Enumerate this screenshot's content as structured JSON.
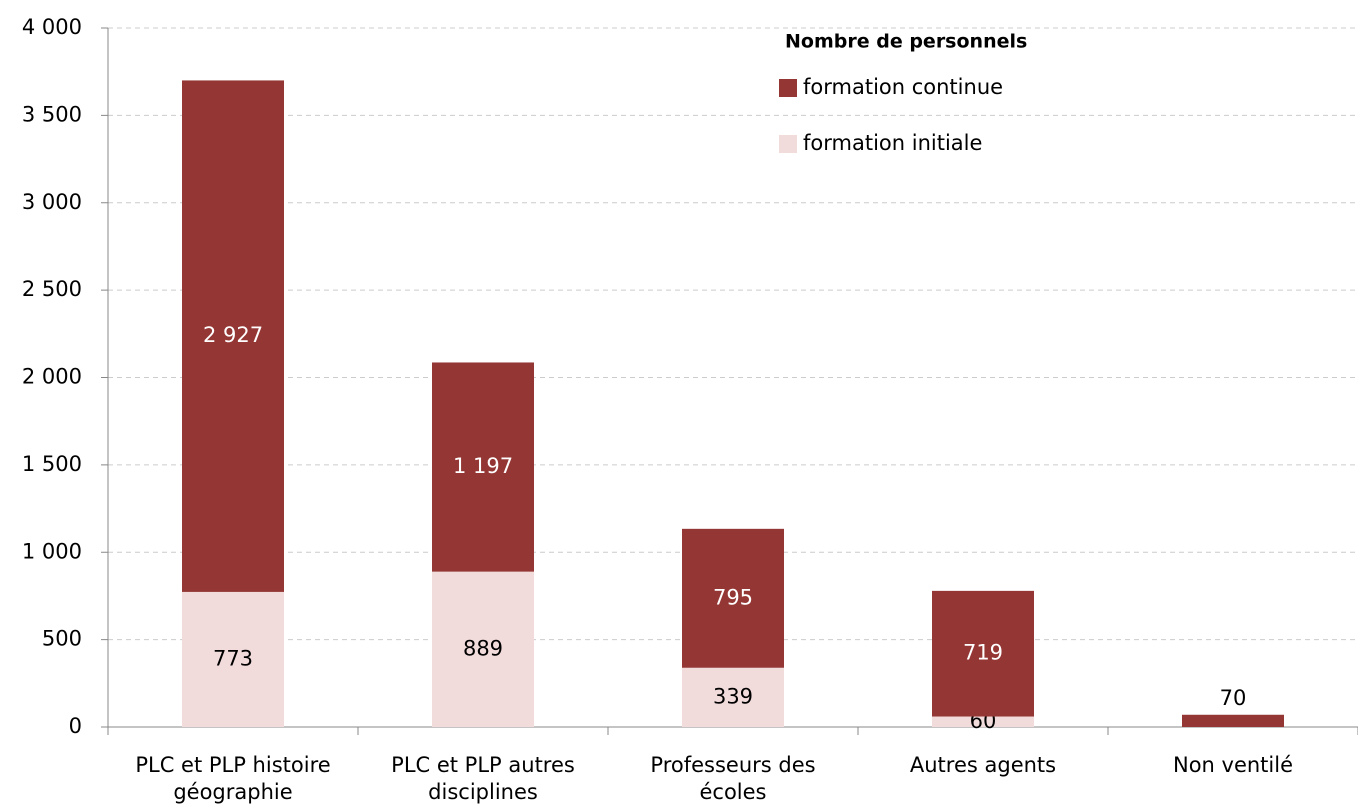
{
  "chart_data": {
    "type": "stacked_bar",
    "categories": [
      "PLC et PLP histoire géographie",
      "PLC et PLP autres disciplines",
      "Professeurs des écoles",
      "Autres agents",
      "Non ventilé"
    ],
    "legend_title": "Nombre de personnels",
    "series": [
      {
        "name": "formation initiale",
        "color": "#f2dcdb",
        "values": [
          773,
          889,
          339,
          60,
          null
        ]
      },
      {
        "name": "formation continue",
        "color": "#943634",
        "values": [
          2927,
          1197,
          795,
          719,
          70
        ],
        "value_labels": [
          "2 927",
          "1 197",
          "795",
          "719",
          "70"
        ]
      }
    ],
    "ylim": [
      0,
      4000
    ],
    "yticks": [
      0,
      500,
      {
        "value": 1000,
        "label": "1 000"
      },
      {
        "value": 1500,
        "label": "1 500"
      },
      {
        "value": 2000,
        "label": "2 000"
      },
      {
        "value": 2500,
        "label": "2 500"
      },
      {
        "value": 3000,
        "label": "3 000"
      },
      {
        "value": 3500,
        "label": "3 500"
      },
      {
        "value": 4000,
        "label": "4 000"
      }
    ],
    "grid": true
  }
}
